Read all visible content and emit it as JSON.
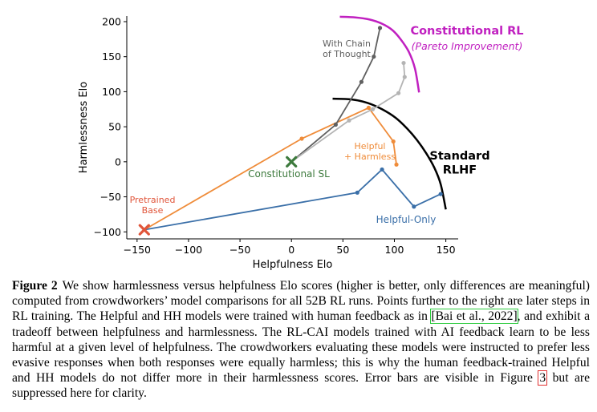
{
  "chart_data": {
    "type": "line",
    "xlabel": "Helpfulness Elo",
    "ylabel": "Harmlessness Elo",
    "xlim": [
      -160,
      162
    ],
    "ylim": [
      -110,
      208
    ],
    "xticks": [
      -150,
      -100,
      -50,
      0,
      50,
      100,
      150
    ],
    "yticks": [
      -100,
      -50,
      0,
      50,
      100,
      150,
      200
    ],
    "xtick_labels": [
      "−150",
      "−100",
      "−50",
      "0",
      "50",
      "100",
      "150"
    ],
    "ytick_labels": [
      "−100",
      "−50",
      "0",
      "50",
      "100",
      "150",
      "200"
    ],
    "grid": false,
    "series": [
      {
        "name": "Helpful-Only",
        "color": "#3a6fa8",
        "x": [
          -143,
          64,
          88,
          119,
          145
        ],
        "y": [
          -97,
          -44,
          -11,
          -64,
          -46
        ]
      },
      {
        "name": "Helpful + Harmless",
        "color": "#ef8c3a",
        "x": [
          -143,
          10,
          75,
          99,
          102
        ],
        "y": [
          -97,
          33,
          77,
          29,
          -4
        ]
      },
      {
        "name": "With Chain of Thought",
        "color": "#606060",
        "x": [
          0,
          43,
          68,
          80,
          86
        ],
        "y": [
          0,
          53,
          114,
          150,
          191
        ]
      },
      {
        "name": "",
        "color": "#b4b4b4",
        "x": [
          0,
          56,
          79,
          104,
          110,
          109
        ],
        "y": [
          0,
          59,
          75,
          98,
          121,
          141
        ]
      }
    ],
    "markers": [
      {
        "label": "Pretrained\nBase",
        "x": -143,
        "y": -97,
        "color": "#e0553a",
        "shape": "x"
      },
      {
        "label": "Constitutional SL",
        "x": 0,
        "y": 0,
        "color": "#3d7a3d",
        "shape": "x"
      }
    ],
    "frontiers": [
      {
        "label": "Standard\nRLHF",
        "color": "#000000",
        "x": [
          40,
          58,
          74,
          88,
          101,
          112,
          122,
          131,
          139,
          145,
          150
        ],
        "y": [
          90,
          89,
          84,
          75,
          63,
          48,
          31,
          12,
          -9,
          -32,
          -68
        ]
      },
      {
        "label": "Constitutional RL",
        "sublabel": "(Pareto Improvement)",
        "color": "#c020c0",
        "x": [
          47,
          62,
          76,
          88,
          98,
          106,
          114,
          120,
          124
        ],
        "y": [
          207,
          206,
          203,
          197,
          188,
          175,
          157,
          133,
          99
        ]
      }
    ],
    "annotations": [
      {
        "text": "With Chain\nof Thought",
        "color": "#606060"
      },
      {
        "text": "Helpful\n+ Harmless",
        "color": "#ef8c3a"
      },
      {
        "text": "Helpful-Only",
        "color": "#3a6fa8"
      }
    ]
  },
  "caption": {
    "label": "Figure 2",
    "part1": "We show harmlessness versus helpfulness Elo scores (higher is better, only differences are meaningful) computed from crowdworkers’ model comparisons for all 52B RL runs. Points further to the right are later steps in RL training. The Helpful and HH models were trained with human feedback as in ",
    "citation": "[Bai et al., 2022]",
    "part2": ", and exhibit a tradeoff between helpfulness and harmlessness. The RL-CAI models trained with AI feedback learn to be less harmful at a given level of helpfulness. The crowdworkers evaluating these models were instructed to prefer less evasive responses when both responses were equally harmless; this is why the human feedback-trained Helpful and HH models do not differ more in their harmlessness scores. Error bars are visible in Figure ",
    "figure_ref": "3",
    "part3": " but are suppressed here for clarity."
  }
}
